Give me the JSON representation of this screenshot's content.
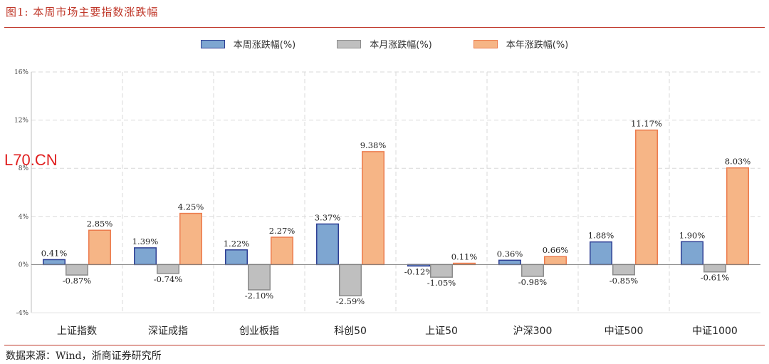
{
  "figure_title": "图1:    本周市场主要指数涨跌幅",
  "source_note": "数据来源：Wind，浙商证券研究所",
  "watermark": "L70.CN",
  "colors": {
    "accent": "#c0392b",
    "weekly_fill": "#7ea6d1",
    "weekly_stroke": "#2e3f94",
    "monthly_fill": "#bfbfbf",
    "monthly_stroke": "#8c8c8c",
    "yearly_fill": "#f6b586",
    "yearly_stroke": "#ec7c4e"
  },
  "chart_data": {
    "type": "bar",
    "categories": [
      "上证指数",
      "深证成指",
      "创业板指",
      "科创50",
      "上证50",
      "沪深300",
      "中证500",
      "中证1000"
    ],
    "series": [
      {
        "name": "本周涨跌幅(%)",
        "values": [
          0.41,
          1.39,
          1.22,
          3.37,
          -0.12,
          0.36,
          1.88,
          1.9
        ],
        "labels": [
          "0.41%",
          "1.39%",
          "1.22%",
          "3.37%",
          "-0.12%",
          "0.36%",
          "1.88%",
          "1.90%"
        ]
      },
      {
        "name": "本月涨跌幅(%)",
        "values": [
          -0.87,
          -0.74,
          -2.1,
          -2.59,
          -1.05,
          -0.98,
          -0.85,
          -0.61
        ],
        "labels": [
          "-0.87%",
          "-0.74%",
          "-2.10%",
          "-2.59%",
          "-1.05%",
          "-0.98%",
          "-0.85%",
          "-0.61%"
        ]
      },
      {
        "name": "本年涨跌幅(%)",
        "values": [
          2.85,
          4.25,
          2.27,
          9.38,
          0.11,
          0.66,
          11.17,
          8.03
        ],
        "labels": [
          "2.85%",
          "4.25%",
          "2.27%",
          "9.38%",
          "0.11%",
          "0.66%",
          "11.17%",
          "8.03%"
        ]
      }
    ],
    "ylim": [
      -4,
      16
    ],
    "yticks": [
      -4,
      0,
      4,
      8,
      12,
      16
    ],
    "ytick_labels": [
      "-4%",
      "0%",
      "4%",
      "8%",
      "12%",
      "16%"
    ],
    "grid": "dashed",
    "legend": "top-center"
  }
}
